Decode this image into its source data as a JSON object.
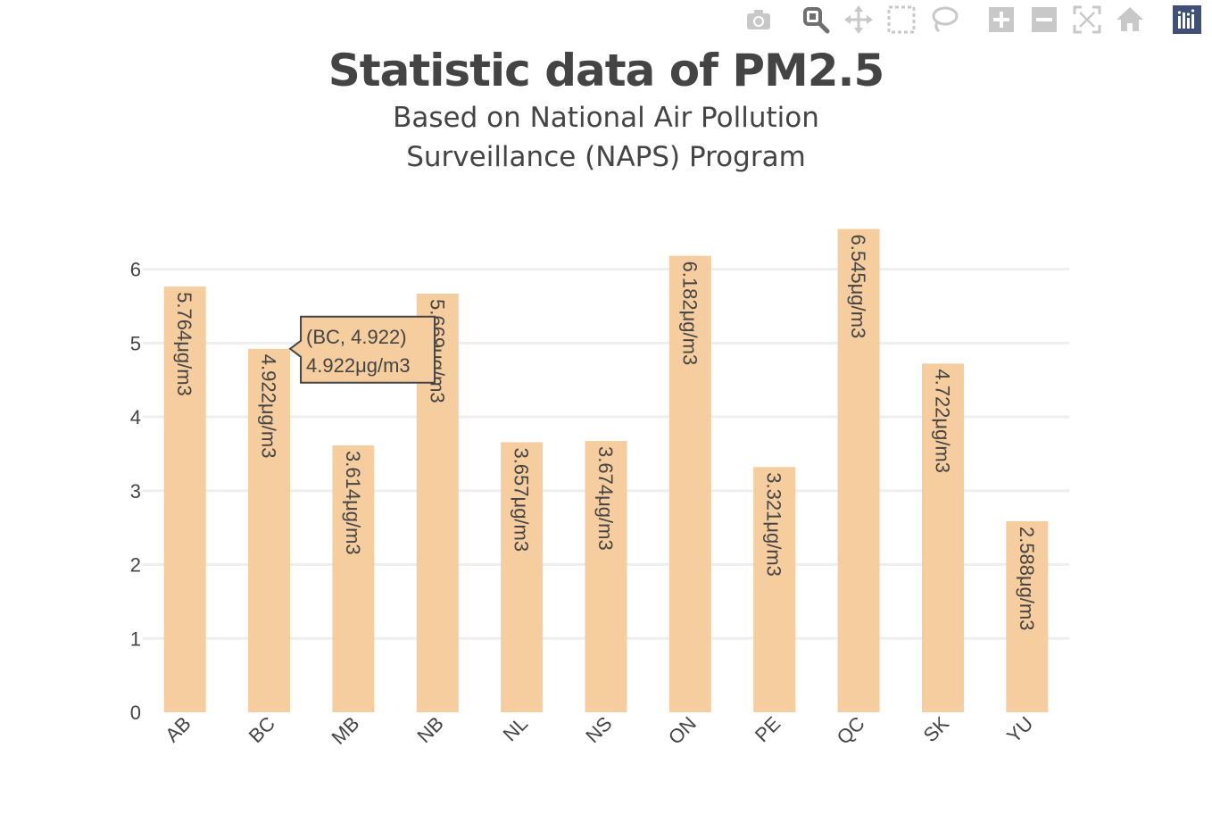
{
  "toolbar": {
    "buttons": [
      "camera-icon",
      "zoom-icon",
      "pan-icon",
      "box-select-icon",
      "lasso-select-icon",
      "zoom-in-icon",
      "zoom-out-icon",
      "autoscale-icon",
      "reset-axes-icon",
      "plotly-logo-icon"
    ]
  },
  "colors": {
    "bar": "#f6cd9e",
    "text": "#444444",
    "grid": "#eeeeee"
  },
  "chart_data": {
    "type": "bar",
    "title": "Statistic data of PM2.5",
    "subtitle_lines": [
      "Based on National Air Pollution",
      "Surveillance (NAPS) Program"
    ],
    "categories": [
      "AB",
      "BC",
      "MB",
      "NB",
      "NL",
      "NS",
      "ON",
      "PE",
      "QC",
      "SK",
      "YU"
    ],
    "values": [
      5.764,
      4.922,
      3.614,
      5.669,
      3.657,
      3.674,
      6.182,
      3.321,
      6.545,
      4.722,
      2.588
    ],
    "data_labels": [
      "5.764μg/m3",
      "4.922μg/m3",
      "3.614μg/m3",
      "5.669μg/m3",
      "3.657μg/m3",
      "3.674μg/m3",
      "6.182μg/m3",
      "3.321μg/m3",
      "6.545μg/m3",
      "4.722μg/m3",
      "2.588μg/m3"
    ],
    "yticks": [
      0,
      1,
      2,
      3,
      4,
      5,
      6
    ],
    "ylim": [
      0,
      6.89
    ],
    "grid": true,
    "xlabel": "",
    "ylabel": "",
    "hover": {
      "category": "BC",
      "line1": "(BC, 4.922)",
      "line2": "4.922μg/m3"
    }
  }
}
